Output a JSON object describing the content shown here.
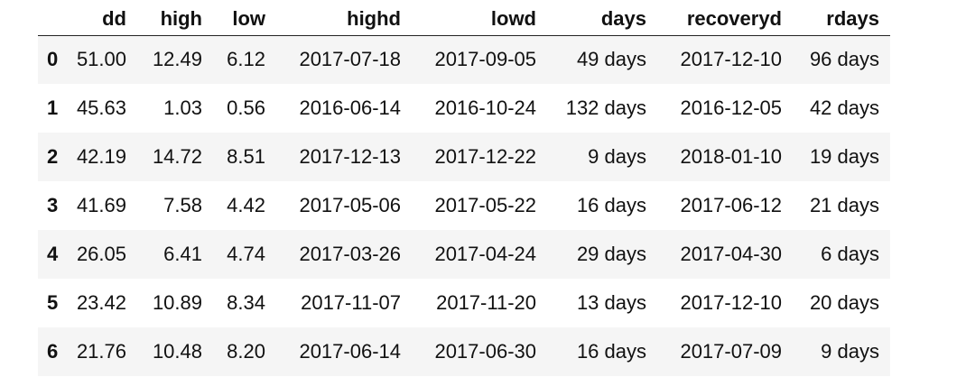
{
  "table": {
    "columns": [
      "dd",
      "high",
      "low",
      "highd",
      "lowd",
      "days",
      "recoveryd",
      "rdays"
    ],
    "rows": [
      {
        "index": "0",
        "cells": [
          "51.00",
          "12.49",
          "6.12",
          "2017-07-18",
          "2017-09-05",
          "49 days",
          "2017-12-10",
          "96 days"
        ]
      },
      {
        "index": "1",
        "cells": [
          "45.63",
          "1.03",
          "0.56",
          "2016-06-14",
          "2016-10-24",
          "132 days",
          "2016-12-05",
          "42 days"
        ]
      },
      {
        "index": "2",
        "cells": [
          "42.19",
          "14.72",
          "8.51",
          "2017-12-13",
          "2017-12-22",
          "9 days",
          "2018-01-10",
          "19 days"
        ]
      },
      {
        "index": "3",
        "cells": [
          "41.69",
          "7.58",
          "4.42",
          "2017-05-06",
          "2017-05-22",
          "16 days",
          "2017-06-12",
          "21 days"
        ]
      },
      {
        "index": "4",
        "cells": [
          "26.05",
          "6.41",
          "4.74",
          "2017-03-26",
          "2017-04-24",
          "29 days",
          "2017-04-30",
          "6 days"
        ]
      },
      {
        "index": "5",
        "cells": [
          "23.42",
          "10.89",
          "8.34",
          "2017-11-07",
          "2017-11-20",
          "13 days",
          "2017-12-10",
          "20 days"
        ]
      },
      {
        "index": "6",
        "cells": [
          "21.76",
          "10.48",
          "8.20",
          "2017-06-14",
          "2017-06-30",
          "16 days",
          "2017-07-09",
          "9 days"
        ]
      }
    ]
  }
}
